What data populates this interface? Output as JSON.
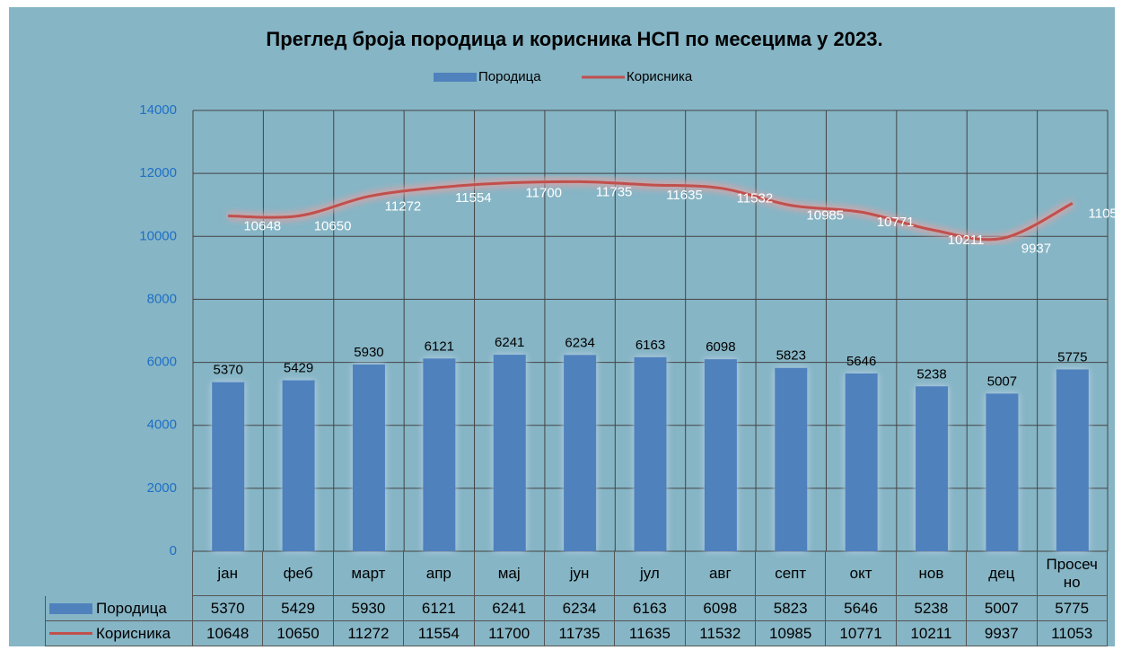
{
  "chart_data": {
    "type": "bar",
    "title": "Преглед броја породица и корисника НСП  по месецима у 2023.",
    "categories": [
      "јан",
      "феб",
      "март",
      "апр",
      "мај",
      "јун",
      "јул",
      "авг",
      "септ",
      "окт",
      "нов",
      "дец",
      "Просечно"
    ],
    "series": [
      {
        "name": "Породица",
        "type": "bar",
        "color": "#4f81bd",
        "values": [
          5370,
          5429,
          5930,
          6121,
          6241,
          6234,
          6163,
          6098,
          5823,
          5646,
          5238,
          5007,
          5775
        ]
      },
      {
        "name": "Корисника",
        "type": "line",
        "color": "#c0504d",
        "values": [
          10648,
          10650,
          11272,
          11554,
          11700,
          11735,
          11635,
          11532,
          10985,
          10771,
          10211,
          9937,
          11053
        ]
      }
    ],
    "ylim": [
      0,
      14000
    ],
    "yticks": [
      0,
      2000,
      4000,
      6000,
      8000,
      10000,
      12000,
      14000
    ],
    "grid": true,
    "legend": "top",
    "data_table": true
  }
}
